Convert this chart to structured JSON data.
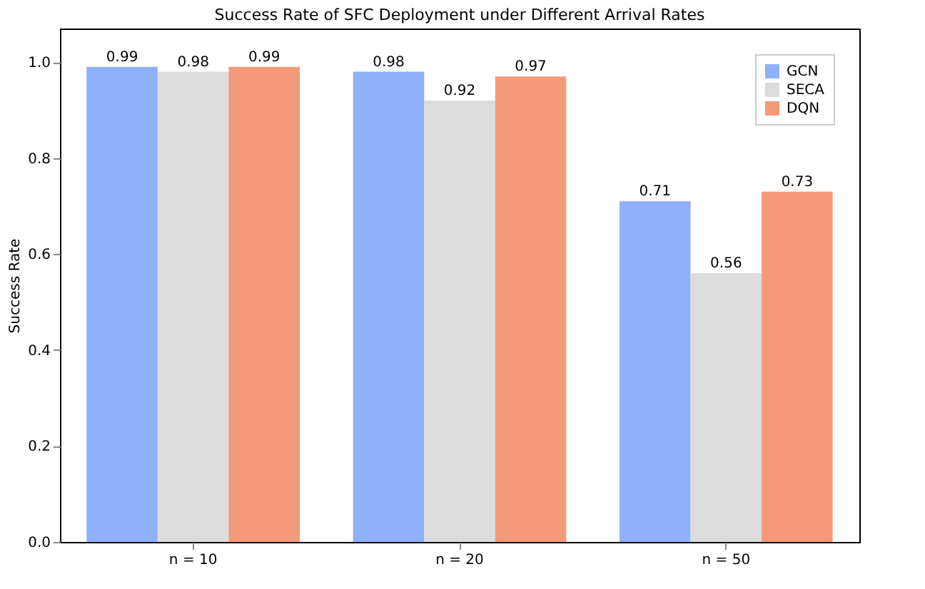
{
  "chart_data": {
    "type": "bar",
    "title": "Success Rate of SFC Deployment under Different Arrival Rates",
    "ylabel": "Success Rate",
    "categories": [
      "n = 10",
      "n = 20",
      "n = 50"
    ],
    "series": [
      {
        "name": "GCN",
        "color": "#8fb0fb",
        "values": [
          0.99,
          0.98,
          0.71
        ]
      },
      {
        "name": "SECA",
        "color": "#dcdcdc",
        "values": [
          0.98,
          0.92,
          0.56
        ]
      },
      {
        "name": "DQN",
        "color": "#f4997a",
        "values": [
          0.99,
          0.97,
          0.73
        ]
      }
    ],
    "ylim": [
      0,
      1.07
    ],
    "yticks": [
      {
        "value": 0,
        "label": "0.0"
      },
      0.2,
      0.4,
      0.6,
      0.8,
      {
        "value": 1,
        "label": "1.0"
      }
    ],
    "data_labels": true,
    "legend": "top right",
    "grid": false
  }
}
